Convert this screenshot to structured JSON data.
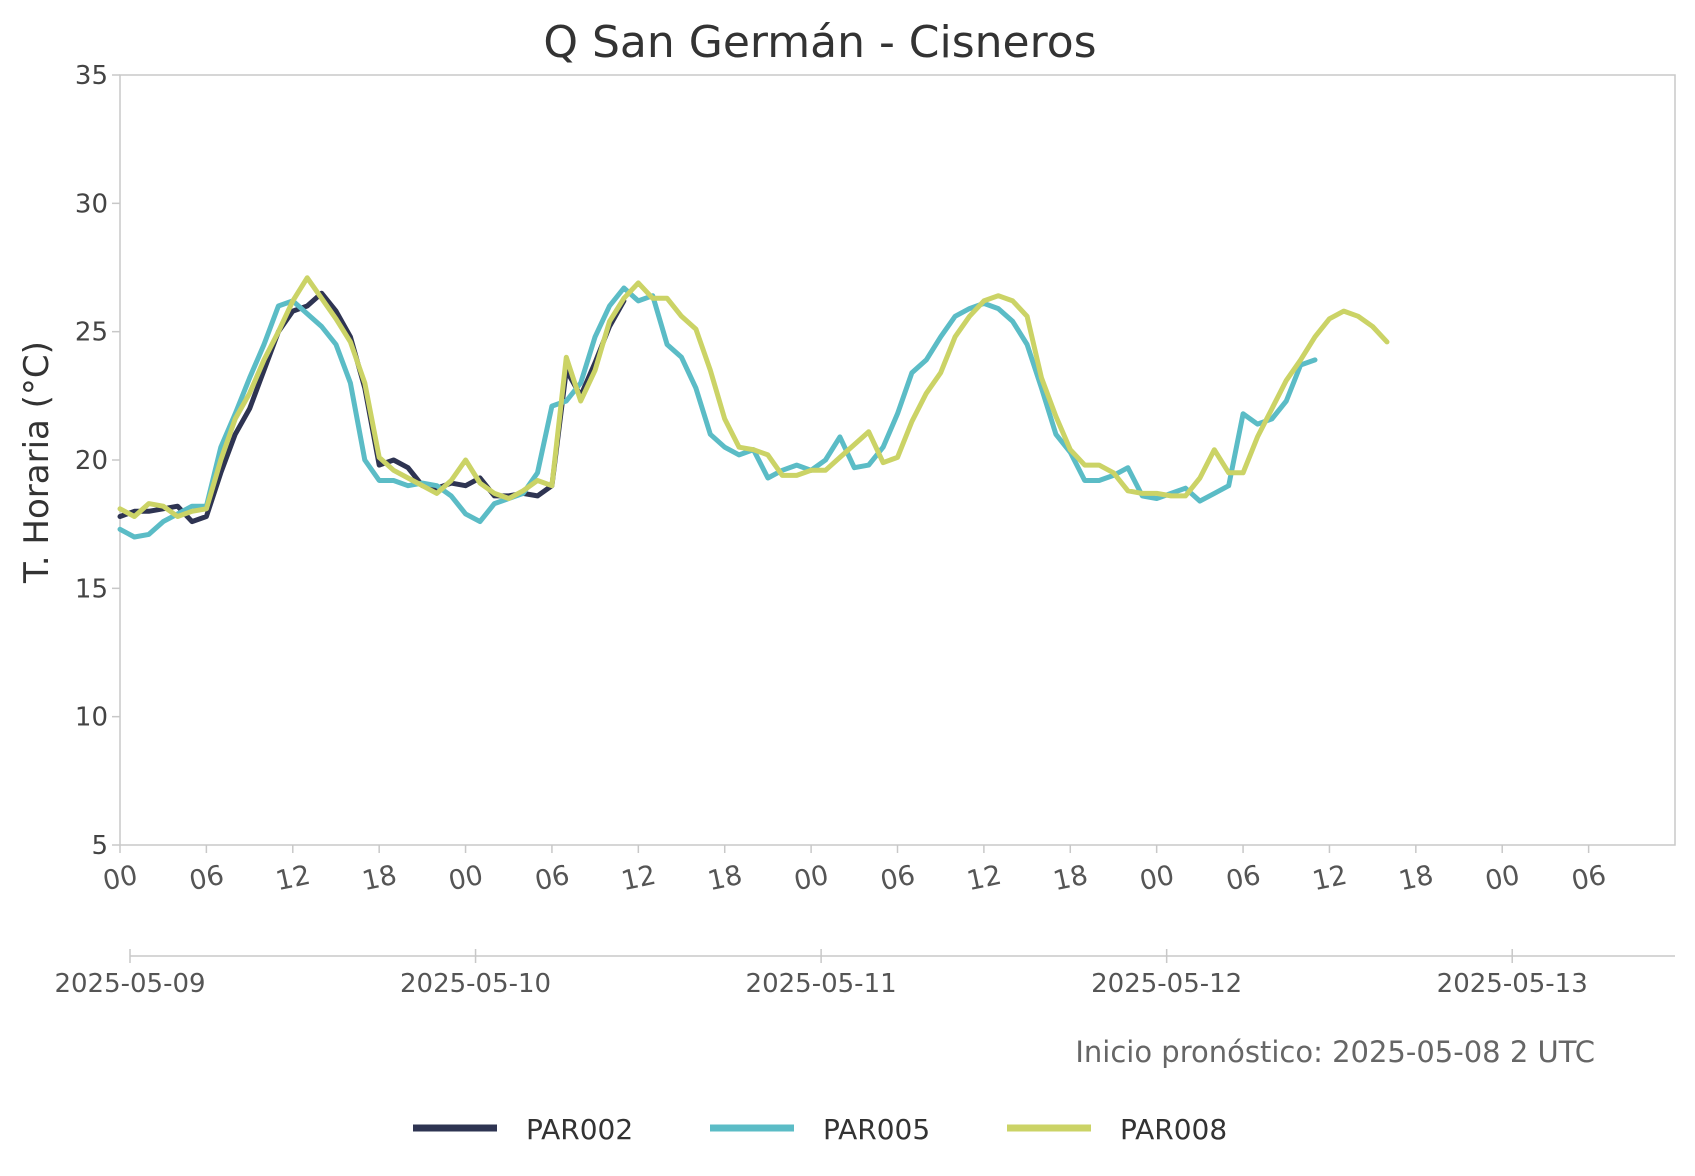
{
  "chart_data": {
    "type": "line",
    "title": "Q San Germán - Cisneros",
    "ylabel": "T. Horaria (°C)",
    "ylim": [
      5,
      35
    ],
    "yticks": [
      5,
      10,
      15,
      20,
      25,
      30,
      35
    ],
    "xlim_hours": [
      0,
      108
    ],
    "hour_ticks": [
      "00",
      "06",
      "12",
      "18",
      "00",
      "06",
      "12",
      "18",
      "00",
      "06",
      "12",
      "18",
      "00",
      "06",
      "12",
      "18",
      "00",
      "06"
    ],
    "date_ticks": [
      "2025-05-09",
      "2025-05-10",
      "2025-05-11",
      "2025-05-12",
      "2025-05-13"
    ],
    "grid": false,
    "legend_position": "bottom",
    "note": "Inicio pronóstico: 2025-05-08 2 UTC",
    "series": [
      {
        "name": "PAR002",
        "color": "#2e3452",
        "points": [
          [
            0,
            17.8
          ],
          [
            1,
            18.0
          ],
          [
            2,
            18.0
          ],
          [
            3,
            18.1
          ],
          [
            4,
            18.2
          ],
          [
            5,
            17.6
          ],
          [
            6,
            17.8
          ],
          [
            7,
            19.5
          ],
          [
            8,
            21.0
          ],
          [
            9,
            22.0
          ],
          [
            10,
            23.5
          ],
          [
            11,
            25.0
          ],
          [
            12,
            25.8
          ],
          [
            13,
            26.0
          ],
          [
            14,
            26.5
          ],
          [
            15,
            25.8
          ],
          [
            16,
            24.8
          ],
          [
            17,
            22.8
          ],
          [
            18,
            19.8
          ],
          [
            19,
            20.0
          ],
          [
            20,
            19.7
          ],
          [
            21,
            19.0
          ],
          [
            22,
            18.9
          ],
          [
            23,
            19.1
          ],
          [
            24,
            19.0
          ],
          [
            25,
            19.3
          ],
          [
            26,
            18.6
          ],
          [
            27,
            18.6
          ],
          [
            28,
            18.7
          ],
          [
            29,
            18.6
          ],
          [
            30,
            19.0
          ],
          [
            31,
            23.5
          ],
          [
            32,
            22.5
          ],
          [
            33,
            23.8
          ],
          [
            34,
            25.2
          ],
          [
            35,
            26.2
          ]
        ]
      },
      {
        "name": "PAR005",
        "color": "#5bbcc6",
        "points": [
          [
            0,
            17.3
          ],
          [
            1,
            17.0
          ],
          [
            2,
            17.1
          ],
          [
            3,
            17.6
          ],
          [
            4,
            17.9
          ],
          [
            5,
            18.2
          ],
          [
            6,
            18.2
          ],
          [
            7,
            20.5
          ],
          [
            8,
            21.8
          ],
          [
            9,
            23.2
          ],
          [
            10,
            24.5
          ],
          [
            11,
            26.0
          ],
          [
            12,
            26.2
          ],
          [
            13,
            25.7
          ],
          [
            14,
            25.2
          ],
          [
            15,
            24.5
          ],
          [
            16,
            23.0
          ],
          [
            17,
            20.0
          ],
          [
            18,
            19.2
          ],
          [
            19,
            19.2
          ],
          [
            20,
            19.0
          ],
          [
            21,
            19.1
          ],
          [
            22,
            19.0
          ],
          [
            23,
            18.6
          ],
          [
            24,
            17.9
          ],
          [
            25,
            17.6
          ],
          [
            26,
            18.3
          ],
          [
            27,
            18.5
          ],
          [
            28,
            18.7
          ],
          [
            29,
            19.5
          ],
          [
            30,
            22.1
          ],
          [
            31,
            22.3
          ],
          [
            32,
            23.0
          ],
          [
            33,
            24.8
          ],
          [
            34,
            26.0
          ],
          [
            35,
            26.7
          ],
          [
            36,
            26.2
          ],
          [
            37,
            26.4
          ],
          [
            38,
            24.5
          ],
          [
            39,
            24.0
          ],
          [
            40,
            22.8
          ],
          [
            41,
            21.0
          ],
          [
            42,
            20.5
          ],
          [
            43,
            20.2
          ],
          [
            44,
            20.4
          ],
          [
            45,
            19.3
          ],
          [
            46,
            19.6
          ],
          [
            47,
            19.8
          ],
          [
            48,
            19.6
          ],
          [
            49,
            20.0
          ],
          [
            50,
            20.9
          ],
          [
            51,
            19.7
          ],
          [
            52,
            19.8
          ],
          [
            53,
            20.5
          ],
          [
            54,
            21.8
          ],
          [
            55,
            23.4
          ],
          [
            56,
            23.9
          ],
          [
            57,
            24.8
          ],
          [
            58,
            25.6
          ],
          [
            59,
            25.9
          ],
          [
            60,
            26.1
          ],
          [
            61,
            25.9
          ],
          [
            62,
            25.4
          ],
          [
            63,
            24.5
          ],
          [
            64,
            22.8
          ],
          [
            65,
            21.0
          ],
          [
            66,
            20.3
          ],
          [
            67,
            19.2
          ],
          [
            68,
            19.2
          ],
          [
            69,
            19.4
          ],
          [
            70,
            19.7
          ],
          [
            71,
            18.6
          ],
          [
            72,
            18.5
          ],
          [
            73,
            18.7
          ],
          [
            74,
            18.9
          ],
          [
            75,
            18.4
          ],
          [
            76,
            18.7
          ],
          [
            77,
            19.0
          ],
          [
            78,
            21.8
          ],
          [
            79,
            21.4
          ],
          [
            80,
            21.6
          ],
          [
            81,
            22.3
          ],
          [
            82,
            23.7
          ],
          [
            83,
            23.9
          ]
        ]
      },
      {
        "name": "PAR008",
        "color": "#cbd366",
        "points": [
          [
            0,
            18.1
          ],
          [
            1,
            17.8
          ],
          [
            2,
            18.3
          ],
          [
            3,
            18.2
          ],
          [
            4,
            17.8
          ],
          [
            5,
            18.0
          ],
          [
            6,
            18.1
          ],
          [
            7,
            20.0
          ],
          [
            8,
            21.6
          ],
          [
            9,
            22.6
          ],
          [
            10,
            23.9
          ],
          [
            11,
            25.0
          ],
          [
            12,
            26.2
          ],
          [
            13,
            27.1
          ],
          [
            14,
            26.3
          ],
          [
            15,
            25.5
          ],
          [
            16,
            24.6
          ],
          [
            17,
            23.0
          ],
          [
            18,
            20.1
          ],
          [
            19,
            19.6
          ],
          [
            20,
            19.3
          ],
          [
            21,
            19.0
          ],
          [
            22,
            18.7
          ],
          [
            23,
            19.2
          ],
          [
            24,
            20.0
          ],
          [
            25,
            19.1
          ],
          [
            26,
            18.7
          ],
          [
            27,
            18.5
          ],
          [
            28,
            18.8
          ],
          [
            29,
            19.2
          ],
          [
            30,
            19.0
          ],
          [
            31,
            24.0
          ],
          [
            32,
            22.3
          ],
          [
            33,
            23.5
          ],
          [
            34,
            25.4
          ],
          [
            35,
            26.3
          ],
          [
            36,
            26.9
          ],
          [
            37,
            26.3
          ],
          [
            38,
            26.3
          ],
          [
            39,
            25.6
          ],
          [
            40,
            25.1
          ],
          [
            41,
            23.5
          ],
          [
            42,
            21.6
          ],
          [
            43,
            20.5
          ],
          [
            44,
            20.4
          ],
          [
            45,
            20.2
          ],
          [
            46,
            19.4
          ],
          [
            47,
            19.4
          ],
          [
            48,
            19.6
          ],
          [
            49,
            19.6
          ],
          [
            50,
            20.1
          ],
          [
            51,
            20.6
          ],
          [
            52,
            21.1
          ],
          [
            53,
            19.9
          ],
          [
            54,
            20.1
          ],
          [
            55,
            21.5
          ],
          [
            56,
            22.6
          ],
          [
            57,
            23.4
          ],
          [
            58,
            24.8
          ],
          [
            59,
            25.6
          ],
          [
            60,
            26.2
          ],
          [
            61,
            26.4
          ],
          [
            62,
            26.2
          ],
          [
            63,
            25.6
          ],
          [
            64,
            23.2
          ],
          [
            65,
            21.7
          ],
          [
            66,
            20.4
          ],
          [
            67,
            19.8
          ],
          [
            68,
            19.8
          ],
          [
            69,
            19.5
          ],
          [
            70,
            18.8
          ],
          [
            71,
            18.7
          ],
          [
            72,
            18.7
          ],
          [
            73,
            18.6
          ],
          [
            74,
            18.6
          ],
          [
            75,
            19.3
          ],
          [
            76,
            20.4
          ],
          [
            77,
            19.5
          ],
          [
            78,
            19.5
          ],
          [
            79,
            20.9
          ],
          [
            80,
            22.0
          ],
          [
            81,
            23.1
          ],
          [
            82,
            23.9
          ],
          [
            83,
            24.8
          ],
          [
            84,
            25.5
          ],
          [
            85,
            25.8
          ],
          [
            86,
            25.6
          ],
          [
            87,
            25.2
          ],
          [
            88,
            24.6
          ]
        ]
      }
    ]
  }
}
